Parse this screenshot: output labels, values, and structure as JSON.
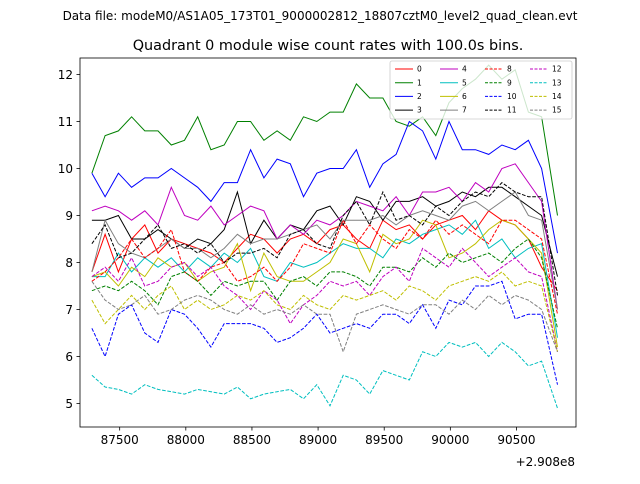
{
  "chart_data": {
    "type": "line",
    "suptitle": "Data file: modeM0/AS1A05_173T01_9000002812_18807cztM0_level2_quad_clean.evt",
    "title": "Quadrant 0 module wise count rates with 100.0s bins.",
    "xlabel": "",
    "ylabel": "",
    "x_offset_label": "+2.908e8",
    "xlim": [
      87200,
      90950
    ],
    "ylim": [
      4.5,
      12.35
    ],
    "xticks": [
      87500,
      88000,
      88500,
      89000,
      89500,
      90000,
      90500
    ],
    "yticks": [
      5,
      6,
      7,
      8,
      9,
      10,
      11,
      12
    ],
    "grid": false,
    "legend_placement": "top-right",
    "legend_ncol": 4,
    "x": [
      87290,
      87390,
      87490,
      87590,
      87690,
      87790,
      87890,
      87990,
      88090,
      88190,
      88290,
      88390,
      88490,
      88590,
      88690,
      88790,
      88890,
      88990,
      89090,
      89190,
      89290,
      89390,
      89490,
      89590,
      89690,
      89790,
      89890,
      89990,
      90090,
      90190,
      90290,
      90390,
      90490,
      90590,
      90690,
      90810
    ],
    "series": [
      {
        "name": "0",
        "color": "#ff0000",
        "dash": "solid",
        "values": [
          7.8,
          8.6,
          7.8,
          8.5,
          8.8,
          8.2,
          8.5,
          8.4,
          8.3,
          8.2,
          8.0,
          8.3,
          8.6,
          8.5,
          8.2,
          8.5,
          8.6,
          8.4,
          8.7,
          8.8,
          8.5,
          8.3,
          8.9,
          8.7,
          8.8,
          8.5,
          8.8,
          8.9,
          9.0,
          8.7,
          9.1,
          8.9,
          8.8,
          8.5,
          7.9,
          7.4
        ]
      },
      {
        "name": "1",
        "color": "#008000",
        "dash": "solid",
        "values": [
          9.9,
          10.7,
          10.8,
          11.1,
          10.8,
          10.8,
          10.5,
          10.6,
          11.1,
          10.4,
          10.5,
          11.0,
          11.0,
          10.6,
          10.8,
          10.6,
          11.1,
          11.0,
          11.2,
          11.2,
          11.8,
          11.5,
          11.5,
          11.0,
          10.9,
          11.1,
          10.7,
          11.4,
          11.7,
          11.9,
          12.2,
          11.9,
          12.1,
          11.2,
          11.1,
          9.0
        ]
      },
      {
        "name": "2",
        "color": "#0000ff",
        "dash": "solid",
        "values": [
          9.9,
          9.4,
          9.9,
          9.6,
          9.8,
          9.8,
          10.0,
          9.8,
          9.6,
          9.3,
          9.7,
          9.7,
          10.4,
          9.8,
          10.2,
          10.1,
          9.4,
          9.9,
          10.0,
          10.0,
          10.4,
          9.6,
          10.1,
          10.3,
          11.0,
          10.8,
          10.2,
          11.0,
          10.4,
          10.4,
          10.3,
          10.5,
          10.4,
          10.6,
          10.0,
          8.2
        ]
      },
      {
        "name": "3",
        "color": "#000000",
        "dash": "solid",
        "values": [
          8.9,
          8.9,
          9.0,
          8.5,
          8.5,
          8.7,
          8.5,
          8.3,
          8.5,
          8.4,
          8.7,
          9.5,
          8.4,
          8.9,
          8.5,
          8.8,
          8.7,
          9.1,
          9.2,
          8.8,
          9.4,
          9.3,
          8.9,
          9.3,
          9.3,
          9.4,
          9.2,
          9.3,
          9.5,
          9.4,
          9.6,
          9.6,
          9.4,
          9.2,
          9.0,
          7.7
        ]
      },
      {
        "name": "4",
        "color": "#bf00bf",
        "dash": "solid",
        "values": [
          9.1,
          9.2,
          9.1,
          8.9,
          9.1,
          8.8,
          9.6,
          9.0,
          8.9,
          9.2,
          8.8,
          9.0,
          9.2,
          9.1,
          8.5,
          8.8,
          8.6,
          8.9,
          8.8,
          9.0,
          9.3,
          9.2,
          9.1,
          9.4,
          9.0,
          9.5,
          9.5,
          9.6,
          9.3,
          9.7,
          9.5,
          10.0,
          10.1,
          9.7,
          9.3,
          7.0
        ]
      },
      {
        "name": "5",
        "color": "#00bfbf",
        "dash": "solid",
        "values": [
          7.7,
          7.7,
          8.2,
          7.8,
          8.1,
          7.9,
          8.1,
          7.8,
          8.1,
          7.9,
          8.2,
          8.0,
          8.3,
          7.7,
          7.6,
          8.0,
          7.9,
          8.0,
          8.2,
          8.4,
          8.3,
          8.3,
          8.1,
          8.5,
          8.4,
          8.6,
          8.7,
          8.8,
          8.6,
          8.9,
          8.3,
          8.5,
          8.1,
          8.3,
          8.4,
          6.4
        ]
      },
      {
        "name": "6",
        "color": "#bfbf00",
        "dash": "solid",
        "values": [
          7.7,
          7.8,
          7.5,
          7.9,
          7.7,
          8.1,
          7.9,
          8.0,
          7.6,
          7.8,
          7.9,
          8.4,
          7.4,
          8.2,
          7.7,
          7.6,
          7.6,
          7.8,
          8.0,
          8.5,
          8.4,
          7.8,
          8.6,
          8.4,
          8.5,
          8.9,
          8.8,
          8.1,
          8.2,
          8.4,
          8.7,
          8.9,
          8.8,
          8.5,
          8.2,
          6.2
        ]
      },
      {
        "name": "7",
        "color": "#808080",
        "dash": "solid",
        "values": [
          7.8,
          8.9,
          8.4,
          8.2,
          8.1,
          8.3,
          8.5,
          8.3,
          8.3,
          8.1,
          8.3,
          8.6,
          8.4,
          8.5,
          8.5,
          8.6,
          8.7,
          8.8,
          8.5,
          8.9,
          8.9,
          8.9,
          9.0,
          8.8,
          9.0,
          9.1,
          9.0,
          8.9,
          9.2,
          9.3,
          9.1,
          9.3,
          9.5,
          9.0,
          8.9,
          7.0
        ]
      },
      {
        "name": "8",
        "color": "#ff0000",
        "dash": "dashed",
        "values": [
          7.6,
          7.8,
          8.1,
          8.5,
          8.1,
          8.3,
          8.7,
          7.8,
          7.6,
          7.9,
          8.0,
          7.6,
          7.7,
          7.9,
          7.6,
          7.9,
          8.4,
          8.3,
          8.2,
          8.9,
          8.4,
          8.8,
          8.5,
          8.3,
          8.7,
          8.5,
          8.9,
          8.6,
          8.8,
          8.6,
          8.4,
          8.9,
          8.9,
          8.7,
          8.5,
          6.9
        ]
      },
      {
        "name": "9",
        "color": "#008000",
        "dash": "dashed",
        "values": [
          7.4,
          7.5,
          7.4,
          7.6,
          7.4,
          7.1,
          7.7,
          7.8,
          7.6,
          7.3,
          7.6,
          7.5,
          7.6,
          7.6,
          7.2,
          7.6,
          7.7,
          7.5,
          7.8,
          7.8,
          7.7,
          7.5,
          7.9,
          7.9,
          7.8,
          8.1,
          7.9,
          8.2,
          8.0,
          8.1,
          8.2,
          8.0,
          8.3,
          8.5,
          8.1,
          6.6
        ]
      },
      {
        "name": "10",
        "color": "#0000ff",
        "dash": "dashed",
        "values": [
          6.6,
          6.0,
          6.9,
          7.1,
          6.5,
          6.3,
          7.0,
          6.9,
          6.6,
          6.2,
          6.7,
          6.7,
          6.7,
          6.6,
          6.3,
          6.4,
          6.6,
          6.9,
          6.5,
          6.6,
          6.7,
          6.6,
          6.9,
          6.9,
          6.7,
          7.1,
          6.6,
          7.2,
          7.1,
          7.5,
          7.5,
          7.6,
          6.8,
          6.9,
          6.9,
          5.4
        ]
      },
      {
        "name": "11",
        "color": "#000000",
        "dash": "dashed",
        "values": [
          8.4,
          8.8,
          8.1,
          8.2,
          8.5,
          8.8,
          8.3,
          8.4,
          8.2,
          8.4,
          8.0,
          8.2,
          8.2,
          8.3,
          8.1,
          8.6,
          8.7,
          8.4,
          8.3,
          9.0,
          9.3,
          8.8,
          9.5,
          8.9,
          9.0,
          8.8,
          9.2,
          9.0,
          9.3,
          9.5,
          9.4,
          9.7,
          9.5,
          9.4,
          9.4,
          7.3
        ]
      },
      {
        "name": "12",
        "color": "#bf00bf",
        "dash": "dashed",
        "values": [
          7.7,
          7.9,
          7.6,
          8.1,
          7.5,
          7.6,
          7.9,
          8.0,
          7.7,
          7.9,
          7.5,
          7.3,
          7.0,
          7.4,
          7.2,
          6.7,
          7.1,
          7.3,
          7.6,
          7.5,
          7.6,
          7.3,
          7.7,
          7.9,
          7.6,
          8.3,
          8.1,
          7.9,
          8.3,
          8.0,
          7.7,
          7.9,
          8.1,
          7.8,
          7.7,
          6.1
        ]
      },
      {
        "name": "13",
        "color": "#00bfbf",
        "dash": "dashed",
        "values": [
          5.6,
          5.35,
          5.3,
          5.2,
          5.4,
          5.3,
          5.25,
          5.2,
          5.3,
          5.25,
          5.2,
          5.35,
          5.1,
          5.2,
          5.25,
          5.3,
          5.1,
          5.4,
          4.95,
          5.6,
          5.5,
          5.2,
          5.7,
          5.6,
          5.5,
          6.1,
          6.0,
          6.3,
          6.2,
          6.3,
          6.0,
          6.3,
          6.1,
          5.8,
          5.9,
          4.9
        ]
      },
      {
        "name": "14",
        "color": "#bfbf00",
        "dash": "dashed",
        "values": [
          7.2,
          6.7,
          7.0,
          7.3,
          7.0,
          7.3,
          7.5,
          7.0,
          7.2,
          7.0,
          7.1,
          7.3,
          7.2,
          7.4,
          7.1,
          7.0,
          7.3,
          7.1,
          7.0,
          7.3,
          7.2,
          7.3,
          7.4,
          7.2,
          7.5,
          7.4,
          7.2,
          7.5,
          7.6,
          7.7,
          7.6,
          7.8,
          7.5,
          7.6,
          7.5,
          6.1
        ]
      },
      {
        "name": "15",
        "color": "#808080",
        "dash": "dashed",
        "values": [
          7.6,
          7.2,
          7.0,
          7.1,
          7.3,
          6.9,
          7.0,
          7.2,
          7.3,
          7.2,
          7.0,
          6.9,
          7.1,
          6.9,
          7.0,
          6.9,
          7.1,
          6.9,
          6.9,
          6.1,
          6.9,
          7.0,
          7.1,
          7.0,
          6.9,
          7.1,
          7.1,
          6.9,
          7.2,
          7.0,
          7.3,
          7.1,
          7.3,
          7.2,
          7.0,
          6.1
        ]
      }
    ]
  }
}
